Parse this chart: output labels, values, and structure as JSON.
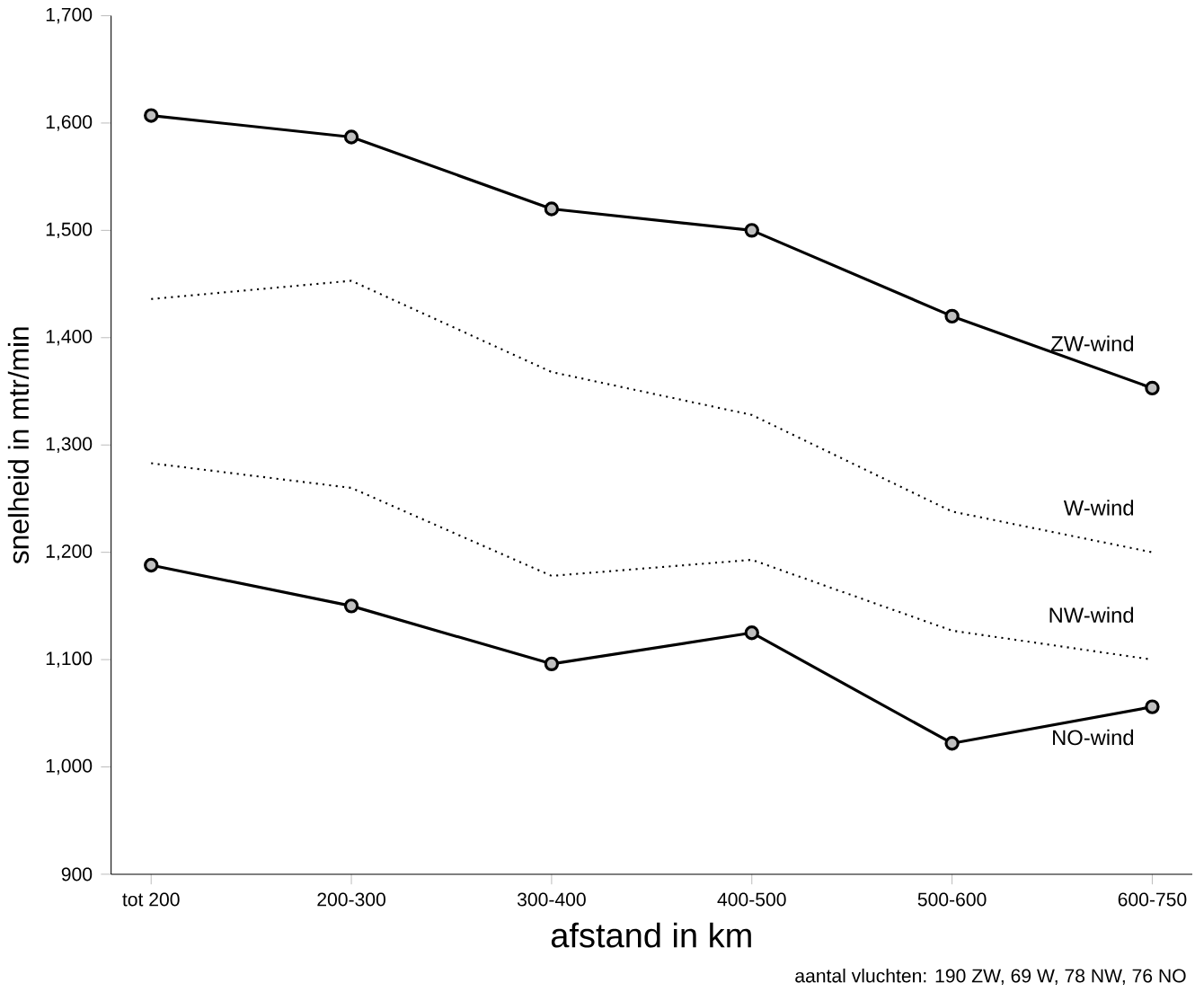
{
  "chart_data": {
    "type": "line",
    "xlabel": "afstand in km",
    "ylabel": "snelheid in mtr/min",
    "categories": [
      "tot 200",
      "200-300",
      "300-400",
      "400-500",
      "500-600",
      "600-750"
    ],
    "ylim": [
      900,
      1700
    ],
    "yticks": [
      {
        "value": 900,
        "label": "900"
      },
      {
        "value": 1000,
        "label": "1,000"
      },
      {
        "value": 1100,
        "label": "1,100"
      },
      {
        "value": 1200,
        "label": "1,200"
      },
      {
        "value": 1300,
        "label": "1,300"
      },
      {
        "value": 1400,
        "label": "1,400"
      },
      {
        "value": 1500,
        "label": "1,500"
      },
      {
        "value": 1600,
        "label": "1,600"
      },
      {
        "value": 1700,
        "label": "1,700"
      }
    ],
    "series": [
      {
        "name": "ZW-wind",
        "color": "#000000",
        "marker": "circle",
        "line_style": "solid",
        "values": [
          1607,
          1587,
          1520,
          1500,
          1420,
          1353
        ]
      },
      {
        "name": "W-wind",
        "color": "#000000",
        "marker": "none",
        "line_style": "dotted",
        "values": [
          1436,
          1453,
          1368,
          1328,
          1238,
          1200
        ]
      },
      {
        "name": "NW-wind",
        "color": "#000000",
        "marker": "none",
        "line_style": "dotted",
        "values": [
          1283,
          1260,
          1178,
          1193,
          1127,
          1100
        ]
      },
      {
        "name": "NO-wind",
        "color": "#000000",
        "marker": "circle",
        "line_style": "solid",
        "values": [
          1188,
          1150,
          1096,
          1125,
          1022,
          1056
        ]
      }
    ],
    "grid": false,
    "annotations": [
      "aantal vluchten: 190 ZW, 69 W, 78 NW, 76 NO"
    ]
  }
}
